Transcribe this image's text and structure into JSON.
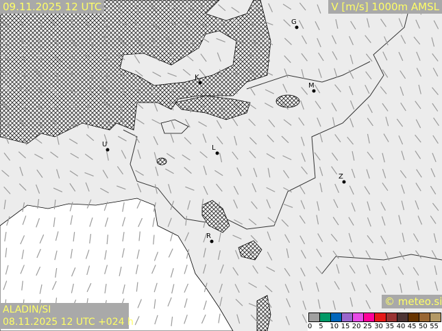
{
  "header": {
    "valid_time": "09.11.2025 12 UTC",
    "parameter": "V [m/s] 1000m AMSL"
  },
  "footer": {
    "model": "ALADIN/SI",
    "run": "08.11.2025 12 UTC +024 h",
    "copyright": "© meteo.si"
  },
  "legend": {
    "unit": "m/s",
    "ticks": [
      "0",
      "5",
      "10",
      "15",
      "20",
      "25",
      "30",
      "35",
      "40",
      "45",
      "50",
      "55"
    ],
    "colors": [
      "#a0a0a0",
      "#009966",
      "#0066bb",
      "#9966cc",
      "#e64ce6",
      "#ff0099",
      "#e61919",
      "#993333",
      "#4c3333",
      "#663300",
      "#996633",
      "#b39966"
    ]
  },
  "cities": [
    {
      "label": "G"
    },
    {
      "label": "K"
    },
    {
      "label": "M"
    },
    {
      "label": "U"
    },
    {
      "label": "L"
    },
    {
      "label": "Z"
    },
    {
      "label": "R"
    }
  ],
  "colors": {
    "background": "#ececec",
    "sea": "#ffffff",
    "hatch": "#222222",
    "wind_barb": "#9a9a9a",
    "label_bg": "#a9a9a9",
    "label_text": "#ffff66"
  }
}
